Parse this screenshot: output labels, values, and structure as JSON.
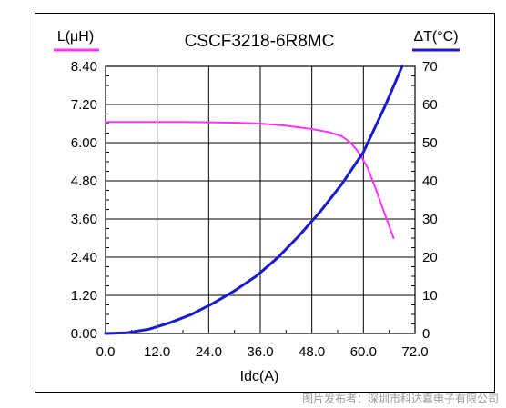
{
  "chart_data": {
    "type": "line",
    "title": "CSCF3218-6R8MC",
    "xlabel": "Idc(A)",
    "ylabel_left": "L(μH)",
    "ylabel_right": "ΔT(°C)",
    "x_ticks": [
      "0.0",
      "12.0",
      "24.0",
      "36.0",
      "48.0",
      "60.0",
      "72.0"
    ],
    "y_left_ticks": [
      "0.00",
      "1.20",
      "2.40",
      "3.60",
      "4.80",
      "6.00",
      "7.20",
      "8.40"
    ],
    "y_right_ticks": [
      "0",
      "10",
      "20",
      "30",
      "40",
      "50",
      "60",
      "70"
    ],
    "xlim": [
      0,
      72
    ],
    "ylim_left": [
      0,
      8.4
    ],
    "ylim_right": [
      0,
      70
    ],
    "grid": true,
    "series": [
      {
        "name": "L(μH)",
        "axis": "left",
        "color": "#ff33ff",
        "x": [
          0,
          6,
          12,
          18,
          24,
          30,
          36,
          42,
          48,
          52,
          55,
          57,
          59,
          61,
          63,
          65,
          67
        ],
        "y": [
          6.65,
          6.65,
          6.65,
          6.65,
          6.64,
          6.63,
          6.6,
          6.53,
          6.43,
          6.33,
          6.2,
          6.0,
          5.68,
          5.2,
          4.5,
          3.75,
          3.0
        ]
      },
      {
        "name": "ΔT(°C)",
        "axis": "right",
        "color": "#1a1acc",
        "x": [
          0,
          5,
          10,
          15,
          20,
          25,
          30,
          35,
          40,
          45,
          50,
          55,
          60,
          65,
          69
        ],
        "y": [
          0,
          0.2,
          1.1,
          2.8,
          5.0,
          7.9,
          11.2,
          15.0,
          19.8,
          25.6,
          32.0,
          39.2,
          47.5,
          59.5,
          70
        ]
      }
    ]
  },
  "watermark": "图片发布者：深圳市科达嘉电子有限公司"
}
